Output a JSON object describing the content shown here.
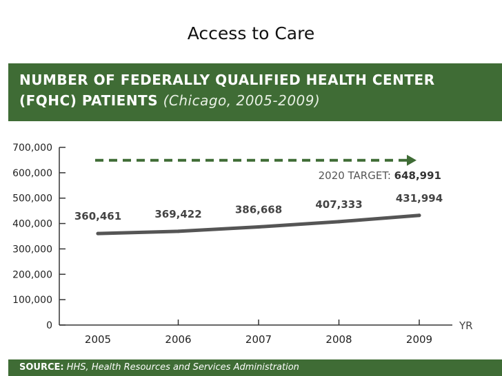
{
  "slide": {
    "title": "Access to Care"
  },
  "header": {
    "line1": "NUMBER OF FEDERALLY QUALIFIED HEALTH CENTER",
    "line2_main": "(FQHC) PATIENTS",
    "line2_sub": "(Chicago, 2005-2009)"
  },
  "footer": {
    "source_label": "SOURCE:",
    "source_text": "HHS, Health Resources and Services Administration"
  },
  "colors": {
    "band": "#3f6c35",
    "line": "#555555",
    "axis": "#333333"
  },
  "chart_data": {
    "type": "line",
    "title": "NUMBER OF FEDERALLY QUALIFIED HEALTH CENTER (FQHC) PATIENTS (Chicago, 2005-2009)",
    "xlabel": "YR",
    "ylabel": "",
    "ylim": [
      0,
      700000
    ],
    "yticks": [
      0,
      100000,
      200000,
      300000,
      400000,
      500000,
      600000,
      700000
    ],
    "ytick_labels": [
      "0",
      "100,000",
      "200,000",
      "300,000",
      "400,000",
      "500,000",
      "600,000",
      "700,000"
    ],
    "categories": [
      "2005",
      "2006",
      "2007",
      "2008",
      "2009"
    ],
    "values": [
      360461,
      369422,
      386668,
      407333,
      431994
    ],
    "value_labels": [
      "360,461",
      "369,422",
      "386,668",
      "407,333",
      "431,994"
    ],
    "target": {
      "label": "2020 TARGET:",
      "value_label": "648,991",
      "value": 648991
    }
  }
}
